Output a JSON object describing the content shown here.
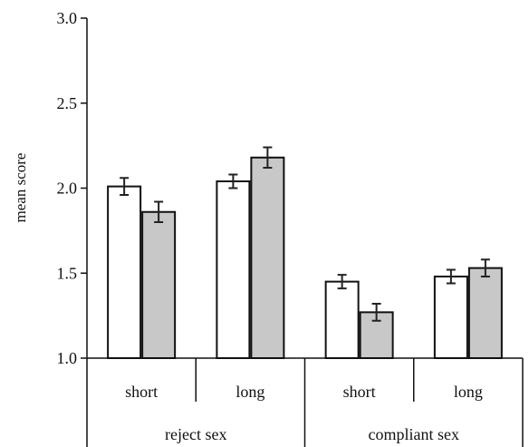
{
  "chart_data": {
    "type": "bar",
    "ylabel": "mean score",
    "xlabel": "",
    "ylim": [
      1.0,
      3.0
    ],
    "yticks": [
      "1.0",
      "1.5",
      "2.0",
      "2.5",
      "3.0"
    ],
    "groups": [
      {
        "label": "reject sex",
        "categories": [
          "short",
          "long"
        ]
      },
      {
        "label": "compliant sex",
        "categories": [
          "short",
          "long"
        ]
      }
    ],
    "categories": [
      "short",
      "long",
      "short",
      "long"
    ],
    "series": [
      {
        "fill": "#ffffff",
        "values": [
          2.01,
          2.04,
          1.45,
          1.48
        ],
        "errors": [
          0.05,
          0.04,
          0.04,
          0.04
        ]
      },
      {
        "fill": "#c8c8c8",
        "values": [
          1.86,
          2.18,
          1.27,
          1.53
        ],
        "errors": [
          0.06,
          0.06,
          0.05,
          0.05
        ]
      }
    ],
    "grid": false,
    "legend": "none"
  }
}
